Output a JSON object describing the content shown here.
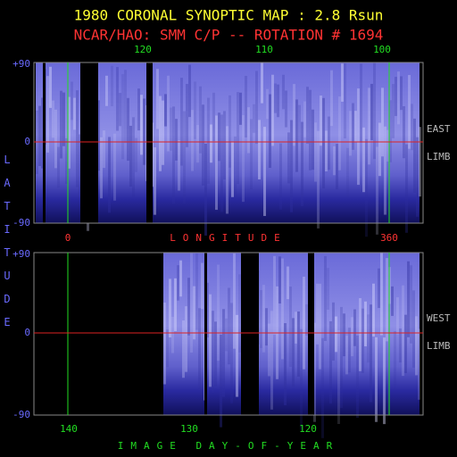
{
  "header": {
    "title": "1980 CORONAL SYNOPTIC MAP : 2.8 Rsun",
    "subtitle": "NCAR/HAO: SMM C/P -- ROTATION # 1694"
  },
  "y_axis": {
    "label": "LATITUDE"
  },
  "top_panel": {
    "top_ticks": [
      "120",
      "110",
      "100"
    ],
    "y_ticks": [
      "+90",
      "0",
      "-90"
    ],
    "side_labels": [
      "EAST",
      "LIMB"
    ],
    "bottom_ticks": [
      "0",
      "360"
    ],
    "x_label": "LONGITUDE"
  },
  "bottom_panel": {
    "y_ticks": [
      "+90",
      "0",
      "-90"
    ],
    "side_labels": [
      "WEST",
      "LIMB"
    ],
    "x_ticks": [
      "140",
      "130",
      "120"
    ],
    "x_label": "IMAGE DAY-OF-YEAR"
  }
}
